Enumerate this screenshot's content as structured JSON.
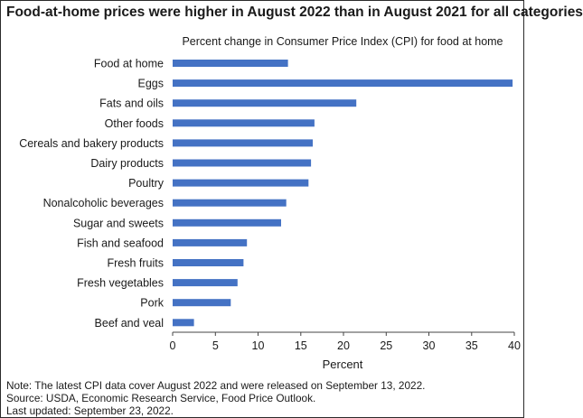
{
  "title": "Food-at-home prices were higher in August 2022 than in August 2021 for all categories",
  "chart_data": {
    "type": "bar",
    "orientation": "horizontal",
    "subtitle": "Percent change in Consumer Price Index (CPI) for food at home",
    "xlabel": "Percent",
    "ylabel": "",
    "xlim": [
      0,
      40
    ],
    "xticks": [
      0,
      5,
      10,
      15,
      20,
      25,
      30,
      35,
      40
    ],
    "grid": false,
    "legend": "none",
    "bar_color": "#4472c4",
    "categories": [
      "Food at home",
      "Eggs",
      "Fats and oils",
      "Other foods",
      "Cereals and bakery products",
      "Dairy products",
      "Poultry",
      "Nonalcoholic beverages",
      "Sugar and sweets",
      "Fish and seafood",
      "Fresh fruits",
      "Fresh vegetables",
      "Pork",
      "Beef and veal"
    ],
    "values": [
      13.5,
      39.8,
      21.5,
      16.6,
      16.4,
      16.2,
      15.9,
      13.3,
      12.7,
      8.7,
      8.3,
      7.6,
      6.8,
      2.5
    ]
  },
  "notes": [
    "Note: The latest CPI data cover August 2022 and were released on September 13, 2022.",
    "Source: USDA, Economic Research Service, Food Price Outlook.",
    "Last updated: September 23, 2022."
  ]
}
